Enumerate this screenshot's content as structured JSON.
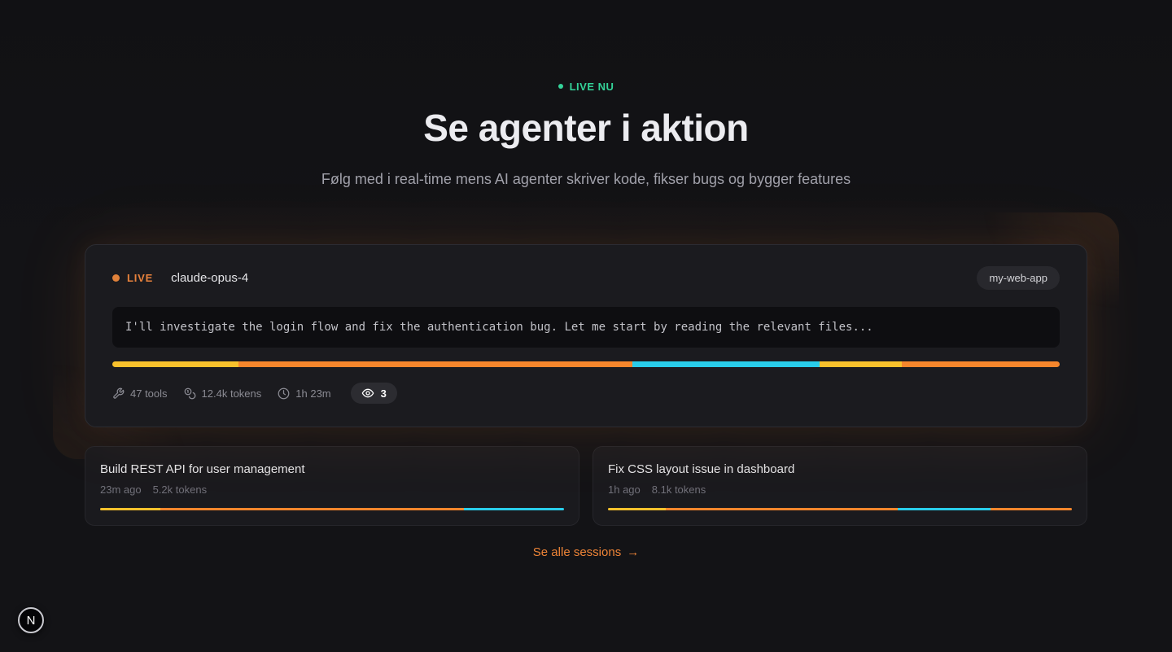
{
  "hero": {
    "badge_label": "LIVE NU",
    "title": "Se agenter i aktion",
    "subtitle": "Følg med i real-time mens AI agenter skriver kode, fikser bugs og bygger features"
  },
  "live_session": {
    "status_label": "LIVE",
    "model": "claude-opus-4",
    "project": "my-web-app",
    "message": "I'll investigate the login flow and fix the authentication bug. Let me start by reading the relevant files...",
    "progress_segments": [
      {
        "color": "#f8c12c",
        "pct": 13.3
      },
      {
        "color": "#f6862c",
        "pct": 41.6
      },
      {
        "color": "#29cdea",
        "pct": 19.8
      },
      {
        "color": "#f8c12c",
        "pct": 8.6
      },
      {
        "color": "#f6862c",
        "pct": 16.7
      }
    ],
    "stats": {
      "tools": "47 tools",
      "tokens": "12.4k tokens",
      "duration": "1h 23m",
      "viewers": "3"
    }
  },
  "sessions": [
    {
      "title": "Build REST API for user management",
      "time": "23m ago",
      "tokens": "5.2k tokens",
      "progress_segments": [
        {
          "color": "#f8c12c",
          "pct": 13.0
        },
        {
          "color": "#f6862c",
          "pct": 65.5
        },
        {
          "color": "#29cdea",
          "pct": 21.5
        }
      ]
    },
    {
      "title": "Fix CSS layout issue in dashboard",
      "time": "1h ago",
      "tokens": "8.1k tokens",
      "progress_segments": [
        {
          "color": "#f8c12c",
          "pct": 12.4
        },
        {
          "color": "#f6862c",
          "pct": 50.0
        },
        {
          "color": "#29cdea",
          "pct": 20.0
        },
        {
          "color": "#f6862c",
          "pct": 17.6
        }
      ]
    }
  ],
  "footer": {
    "see_all_label": "Se alle sessions",
    "arrow": "→"
  },
  "logo": {
    "letter": "N"
  },
  "colors": {
    "background": "#131316",
    "live_green": "#34d399",
    "live_orange": "#e8823c",
    "segment_yellow": "#f8c12c",
    "segment_orange": "#f6862c",
    "segment_cyan": "#29cdea",
    "link_orange": "#ee8437"
  }
}
